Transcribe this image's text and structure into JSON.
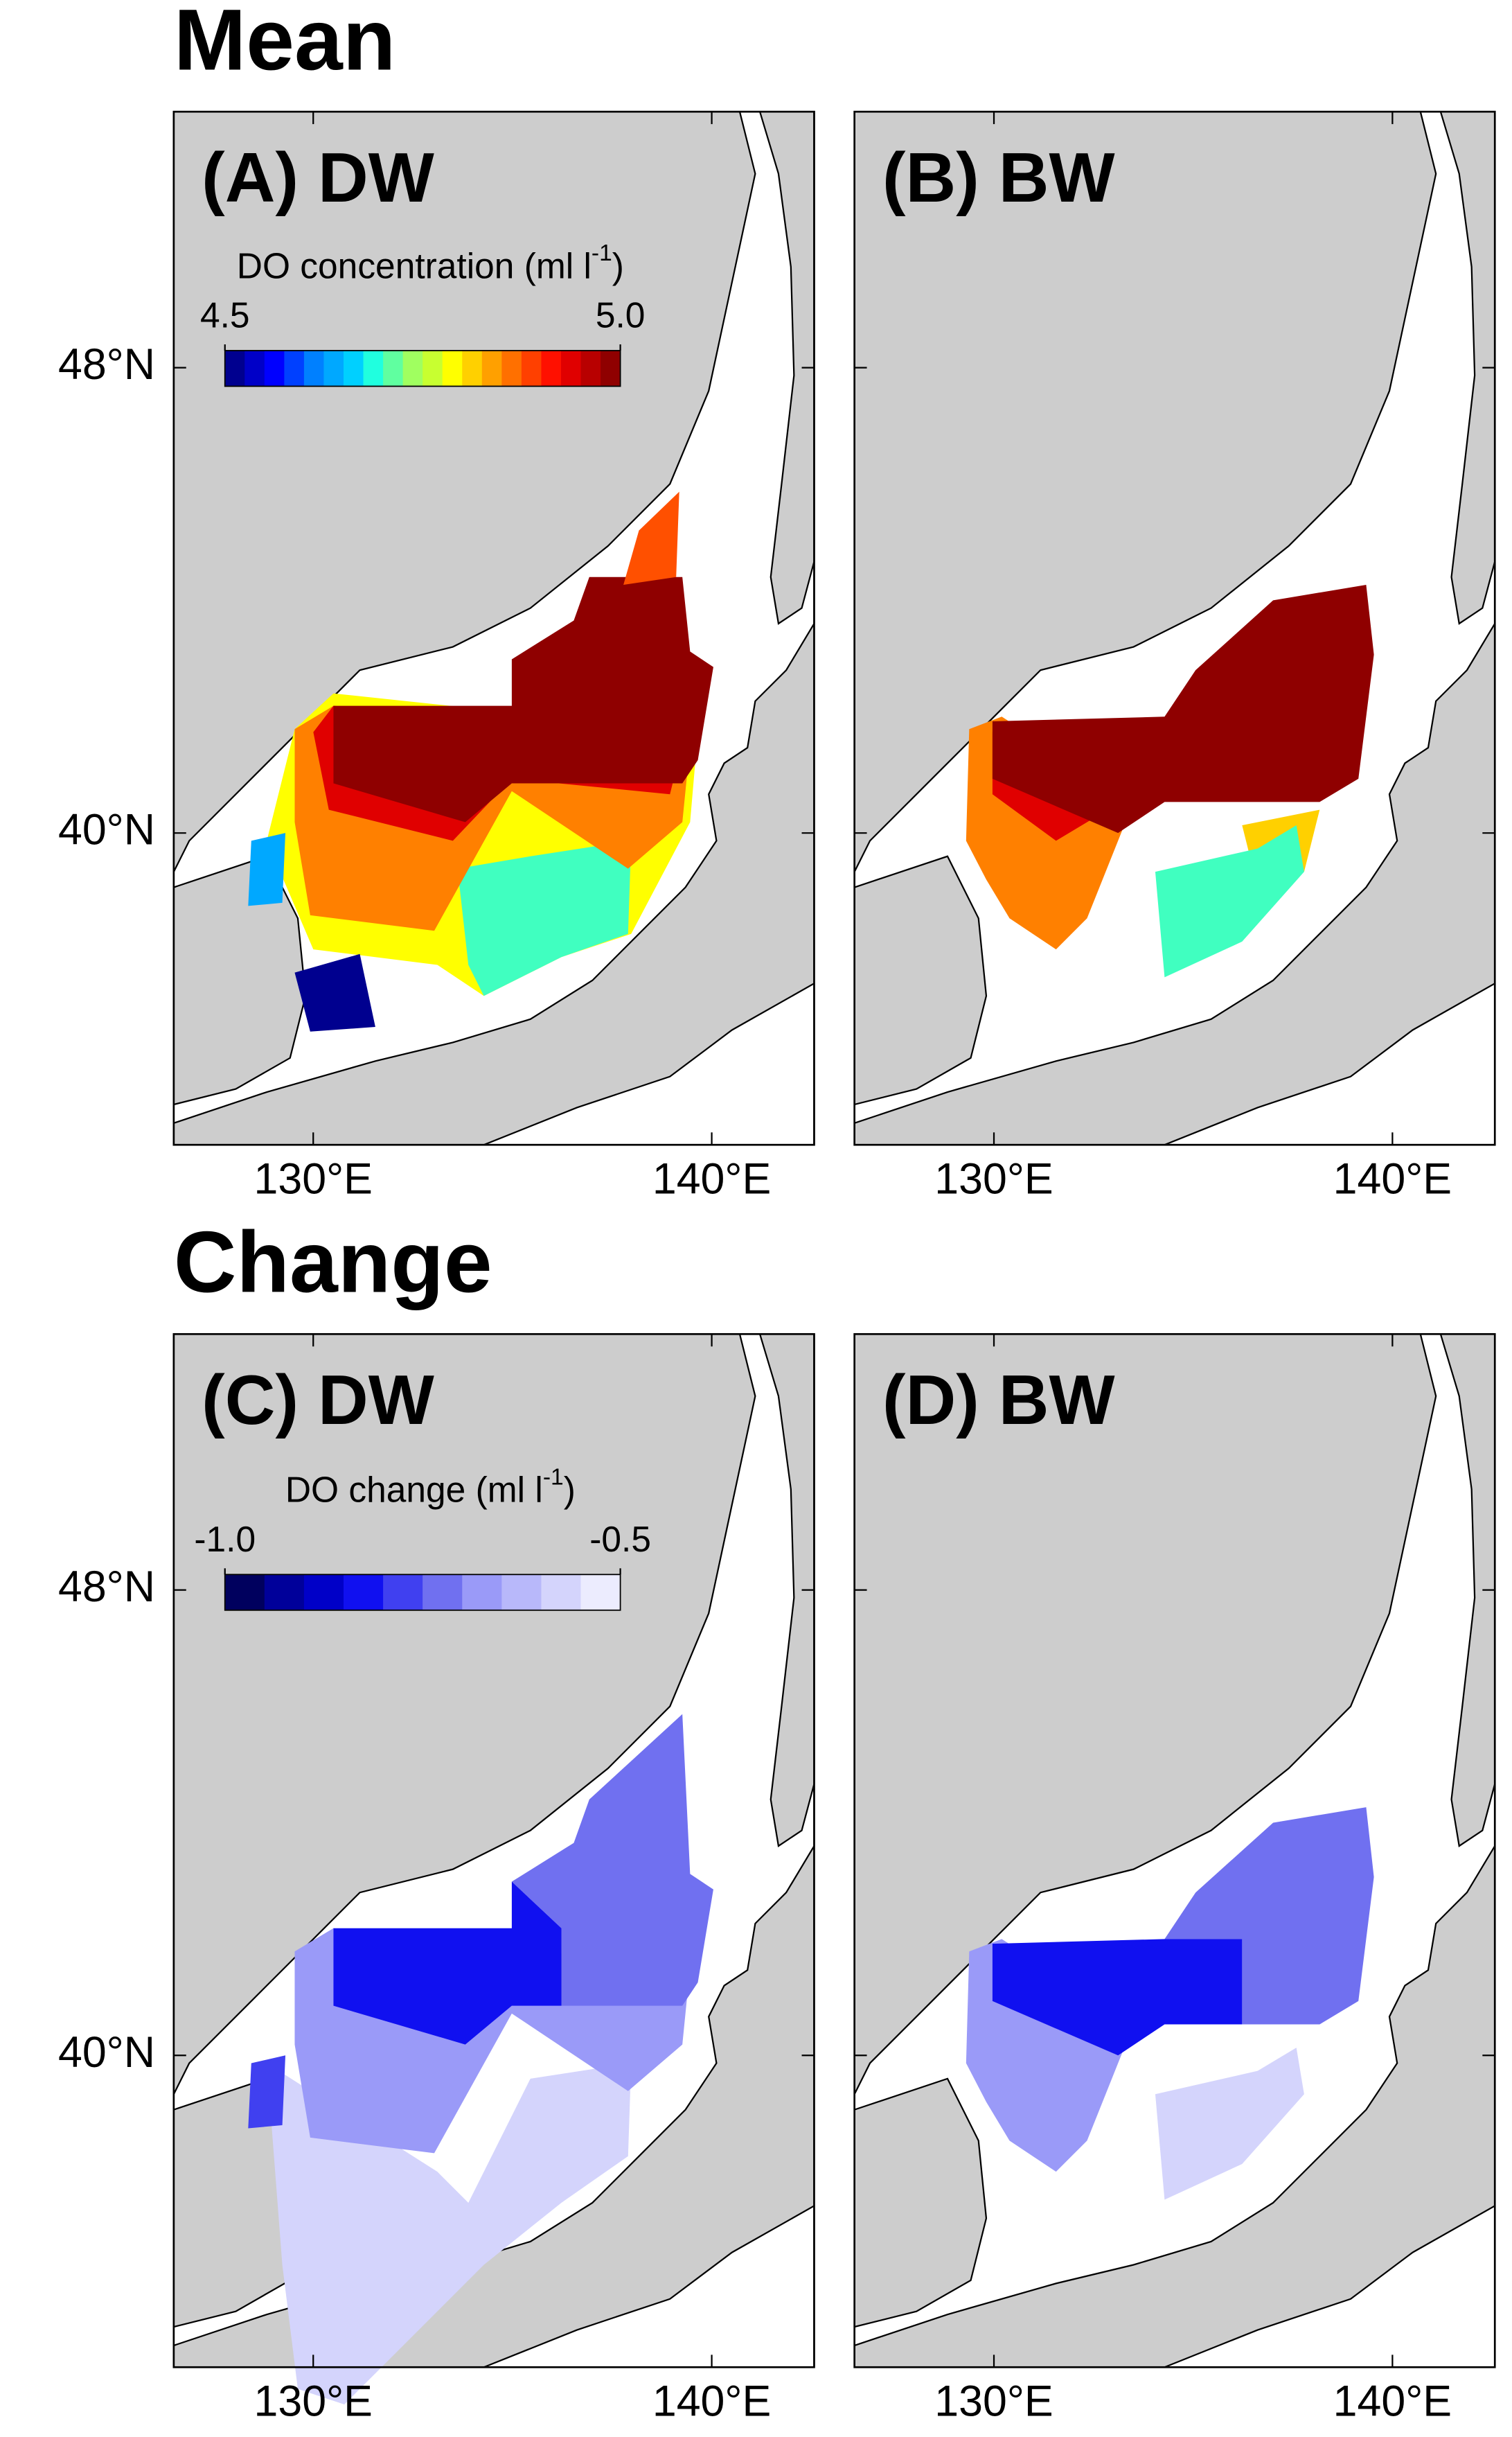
{
  "title_mean": "Mean",
  "title_change": "Change",
  "panels": [
    {
      "label": "(A) DW"
    },
    {
      "label": "(B) BW"
    },
    {
      "label": "(C) DW"
    },
    {
      "label": "(D) BW"
    }
  ],
  "lat_ticks": [
    {
      "value": 48,
      "label": "48°N"
    },
    {
      "value": 40,
      "label": "40°N"
    }
  ],
  "lon_ticks": [
    {
      "value": 130,
      "label": "130°E"
    },
    {
      "value": 140,
      "label": "140°E"
    }
  ],
  "colorbars": [
    {
      "label": "DO concentration (ml l",
      "label_sup": "-1",
      "label_end": ")",
      "clim": [
        4.5,
        5
      ],
      "ticks": [
        4.5,
        {
          "value": 5,
          "label": "5.0"
        }
      ],
      "colors": [
        "#00008f",
        "#0000c8",
        "#0000ff",
        "#0040ff",
        "#0080ff",
        "#00a8ff",
        "#00d0ff",
        "#20ffdf",
        "#60ffa0",
        "#a0ff60",
        "#c8ff30",
        "#ffff00",
        "#ffd000",
        "#ffa000",
        "#ff7000",
        "#ff4000",
        "#ff1000",
        "#e00000",
        "#b80000",
        "#8f0000"
      ]
    },
    {
      "label": "DO change (ml l",
      "label_sup": "-1",
      "label_end": ")",
      "clim": [
        -1,
        -0.5
      ],
      "ticks": [
        {
          "value": -1,
          "label": "-1.0"
        },
        -0.5
      ],
      "colors": [
        "#00005e",
        "#00009a",
        "#0000c8",
        "#1010f0",
        "#4040f0",
        "#7070f0",
        "#9a9af8",
        "#b8b8fa",
        "#d4d4fc",
        "#ececfe"
      ]
    }
  ]
}
